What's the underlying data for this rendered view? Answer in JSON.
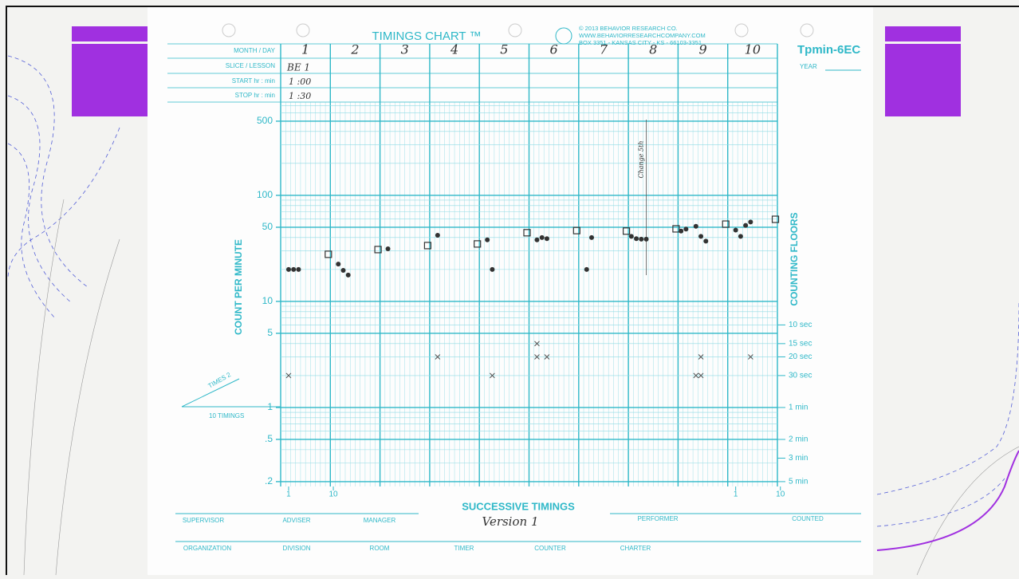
{
  "form": {
    "title": "TIMINGS CHART ™",
    "chart_code": "Tpmin-6EC",
    "year_label": "YEAR",
    "copyright": [
      "© 2013 BEHAVIOR RESEARCH CO.",
      "WWW.BEHAVIORRESEARCHCOMPANY.COM",
      "BOX 3351 - KANSAS CITY - KS - 66103-3351"
    ],
    "row_labels": [
      "MONTH / DAY",
      "SLICE / LESSON",
      "START  hr : min",
      "STOP  hr : min"
    ],
    "days": [
      "1",
      "2",
      "3",
      "4",
      "5",
      "6",
      "7",
      "8",
      "9",
      "10"
    ],
    "lesson": "BE 1",
    "start": "1 :00",
    "stop": "1 :30",
    "times_label": "TIMES 2",
    "timings_label": "10 TIMINGS",
    "bottom_row_1": [
      "SUPERVISOR",
      "ADVISER",
      "MANAGER",
      "PERFORMER",
      "COUNTED"
    ],
    "bottom_row_2": [
      "ORGANIZATION",
      "DIVISION",
      "ROOM",
      "TIMER",
      "COUNTER",
      "CHARTER"
    ],
    "version": "Version 1"
  },
  "chart_data": {
    "type": "scatter",
    "y_label": "COUNT PER MINUTE",
    "y2_label": "COUNTING FLOORS",
    "x_label": "SUCCESSIVE TIMINGS",
    "log_y": true,
    "xlim": [
      -0.6,
      99.4
    ],
    "xticks": [
      1,
      10,
      {
        "value": 91,
        "label": "1"
      },
      {
        "value": 100,
        "label": "10"
      }
    ],
    "ylim": [
      0.18,
      750
    ],
    "yticks": [
      500,
      100,
      50,
      10,
      5,
      1,
      {
        "value": 0.5,
        "label": ".5"
      },
      {
        "value": 0.2,
        "label": ".2"
      }
    ],
    "yminor": [
      0.2,
      0.3,
      0.4,
      0.5,
      0.6,
      0.7,
      0.8,
      0.9,
      2,
      3,
      4,
      5,
      6,
      7,
      8,
      9,
      20,
      30,
      40,
      50,
      60,
      70,
      80,
      90,
      200,
      300,
      400,
      500,
      600,
      700
    ],
    "y2lim": [
      0.18,
      750
    ],
    "y2ticks": [
      {
        "value": 6,
        "label": "10 sec"
      },
      {
        "value": 4,
        "label": "15 sec"
      },
      {
        "value": 3,
        "label": "20 sec"
      },
      {
        "value": 2,
        "label": "30 sec"
      },
      {
        "value": 1,
        "label": "1 min"
      },
      {
        "value": 0.5,
        "label": "2 min"
      },
      {
        "value": 0.333,
        "label": "3 min"
      },
      {
        "value": 0.2,
        "label": "5 min"
      }
    ],
    "annotation": {
      "x": 73,
      "label": "Change 5th"
    },
    "series": [
      {
        "marker": "dot",
        "color": "#333333",
        "x": [
          1,
          2,
          3,
          11,
          12,
          13,
          21,
          31,
          41,
          42,
          51,
          52,
          53,
          61,
          62,
          70,
          71,
          72,
          73,
          80,
          81,
          83,
          84,
          85,
          91,
          92,
          93,
          94
        ],
        "values": [
          20,
          20,
          20,
          22.5,
          19.6,
          17.7,
          31.3,
          42,
          38,
          20,
          38,
          40,
          39,
          20,
          40,
          41,
          39,
          38.6,
          38.6,
          46,
          48,
          51,
          41,
          37,
          47,
          41,
          52,
          56
        ]
      },
      {
        "marker": "square",
        "color": "#333333",
        "x": [
          9,
          19,
          29,
          39,
          49,
          59,
          69,
          79,
          89,
          99
        ],
        "values": [
          27.8,
          30.8,
          33.6,
          34.8,
          44.4,
          46.5,
          46,
          48.3,
          53.5,
          59.4
        ]
      },
      {
        "marker": "cross",
        "color": "#555555",
        "x": [
          1,
          31,
          42,
          51,
          51,
          53,
          84,
          83,
          84,
          94
        ],
        "values": [
          2,
          3,
          2,
          4,
          3,
          3,
          3,
          2,
          2,
          3
        ]
      }
    ]
  }
}
